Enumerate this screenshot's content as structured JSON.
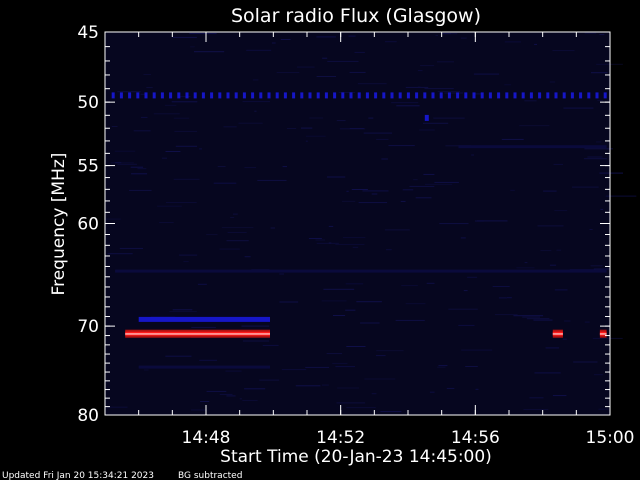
{
  "chart_data": {
    "type": "heatmap",
    "title": "Solar radio Flux (Glasgow)",
    "xlabel": "Start Time (20-Jan-23 14:45:00)",
    "ylabel": "Frequency [MHz]",
    "x_ticks": [
      "14:48",
      "14:52",
      "14:56",
      "15:00"
    ],
    "y_ticks": [
      "45",
      "50",
      "55",
      "60",
      "70",
      "80"
    ],
    "x_range_minutes_after_start": [
      0,
      15
    ],
    "y_range_mhz": [
      45,
      80
    ],
    "y_scale": "log",
    "background_color": "#000000",
    "plot_background_color": "#06061f",
    "colors": {
      "low": "#0a0a3c",
      "mid": "#1616c8",
      "high": "#ff1a1a",
      "peak": "#ffb0b0"
    },
    "features": [
      {
        "label": "persistent line",
        "freq_mhz": 49.5,
        "t_start_min": 0.2,
        "t_end_min": 14.9,
        "intensity": "mid"
      },
      {
        "label": "burst",
        "freq_mhz": 70.8,
        "t_start_min": 0.6,
        "t_end_min": 4.9,
        "intensity": "high"
      },
      {
        "label": "burst upper edge",
        "freq_mhz": 69.3,
        "t_start_min": 1.0,
        "t_end_min": 4.9,
        "intensity": "mid"
      },
      {
        "label": "burst lower band",
        "freq_mhz": 74.5,
        "t_start_min": 1.0,
        "t_end_min": 4.9,
        "intensity": "low"
      },
      {
        "label": "late burst A",
        "freq_mhz": 70.8,
        "t_start_min": 13.3,
        "t_end_min": 13.6,
        "intensity": "high"
      },
      {
        "label": "late burst B",
        "freq_mhz": 70.8,
        "t_start_min": 14.7,
        "t_end_min": 14.9,
        "intensity": "high"
      },
      {
        "label": "spot",
        "freq_mhz": 51.2,
        "t_start_min": 9.5,
        "t_end_min": 9.6,
        "intensity": "mid"
      },
      {
        "label": "faint band",
        "freq_mhz": 53.5,
        "t_start_min": 10.5,
        "t_end_min": 14.9,
        "intensity": "low"
      },
      {
        "label": "faint band",
        "freq_mhz": 64.5,
        "t_start_min": 0.3,
        "t_end_min": 14.9,
        "intensity": "low"
      }
    ]
  },
  "footer": {
    "updated": "Updated Fri Jan 20 15:34:21 2023",
    "note": "BG subtracted"
  }
}
